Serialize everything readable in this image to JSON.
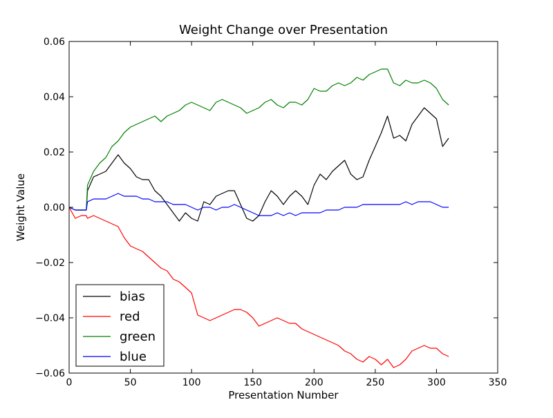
{
  "chart_data": {
    "type": "line",
    "title": "Weight Change over Presentation",
    "xlabel": "Presentation Number",
    "ylabel": "Weight Value",
    "xlim": [
      0,
      350
    ],
    "ylim": [
      -0.06,
      0.06
    ],
    "xticks": [
      0,
      50,
      100,
      150,
      200,
      250,
      300,
      350
    ],
    "xtick_labels": [
      "0",
      "50",
      "100",
      "150",
      "200",
      "250",
      "300",
      "350"
    ],
    "yticks": [
      0.06,
      0.04,
      0.02,
      0.0,
      -0.02,
      -0.04,
      -0.06
    ],
    "ytick_labels": [
      "0.06",
      "0.04",
      "0.02",
      "0.00",
      "−0.02",
      "−0.04",
      "−0.06"
    ],
    "grid": false,
    "legend_position": "lower-left",
    "x": [
      0,
      5,
      10,
      14,
      15,
      20,
      25,
      30,
      35,
      40,
      45,
      50,
      55,
      60,
      65,
      70,
      75,
      80,
      85,
      90,
      95,
      100,
      105,
      110,
      115,
      120,
      125,
      130,
      135,
      140,
      145,
      150,
      155,
      160,
      165,
      170,
      175,
      180,
      185,
      190,
      195,
      200,
      205,
      210,
      215,
      220,
      225,
      230,
      235,
      240,
      245,
      250,
      255,
      260,
      265,
      270,
      275,
      280,
      285,
      290,
      295,
      300,
      305,
      310
    ],
    "series": [
      {
        "name": "bias",
        "color": "#000000",
        "values": [
          0,
          -0.001,
          -0.001,
          -0.001,
          0.006,
          0.011,
          0.012,
          0.013,
          0.016,
          0.019,
          0.016,
          0.014,
          0.011,
          0.01,
          0.01,
          0.006,
          0.004,
          0.001,
          -0.002,
          -0.005,
          -0.002,
          -0.004,
          -0.005,
          0.002,
          0.001,
          0.004,
          0.005,
          0.006,
          0.006,
          0.001,
          -0.004,
          -0.005,
          -0.003,
          0.002,
          0.006,
          0.004,
          0.001,
          0.004,
          0.006,
          0.004,
          0.001,
          0.008,
          0.012,
          0.01,
          0.013,
          0.015,
          0.017,
          0.012,
          0.01,
          0.011,
          0.017,
          0.022,
          0.027,
          0.033,
          0.025,
          0.026,
          0.024,
          0.03,
          0.033,
          0.036,
          0.034,
          0.032,
          0.022,
          0.025
        ]
      },
      {
        "name": "red",
        "color": "#ff0000",
        "values": [
          0,
          -0.004,
          -0.003,
          -0.003,
          -0.004,
          -0.003,
          -0.004,
          -0.005,
          -0.006,
          -0.007,
          -0.011,
          -0.014,
          -0.015,
          -0.016,
          -0.018,
          -0.02,
          -0.022,
          -0.023,
          -0.026,
          -0.027,
          -0.029,
          -0.031,
          -0.039,
          -0.04,
          -0.041,
          -0.04,
          -0.039,
          -0.038,
          -0.037,
          -0.037,
          -0.038,
          -0.04,
          -0.043,
          -0.042,
          -0.041,
          -0.04,
          -0.041,
          -0.042,
          -0.042,
          -0.044,
          -0.045,
          -0.046,
          -0.047,
          -0.048,
          -0.049,
          -0.05,
          -0.052,
          -0.053,
          -0.055,
          -0.056,
          -0.054,
          -0.055,
          -0.057,
          -0.055,
          -0.058,
          -0.057,
          -0.055,
          -0.052,
          -0.051,
          -0.05,
          -0.051,
          -0.051,
          -0.053,
          -0.054
        ]
      },
      {
        "name": "green",
        "color": "#008000",
        "values": [
          0,
          -0.001,
          -0.001,
          -0.001,
          0.008,
          0.013,
          0.016,
          0.018,
          0.022,
          0.024,
          0.027,
          0.029,
          0.03,
          0.031,
          0.032,
          0.033,
          0.031,
          0.033,
          0.034,
          0.035,
          0.037,
          0.038,
          0.037,
          0.036,
          0.035,
          0.038,
          0.039,
          0.038,
          0.037,
          0.036,
          0.034,
          0.035,
          0.036,
          0.038,
          0.039,
          0.037,
          0.036,
          0.038,
          0.038,
          0.037,
          0.039,
          0.043,
          0.042,
          0.042,
          0.044,
          0.045,
          0.044,
          0.045,
          0.047,
          0.046,
          0.048,
          0.049,
          0.05,
          0.05,
          0.045,
          0.044,
          0.046,
          0.045,
          0.045,
          0.046,
          0.045,
          0.043,
          0.039,
          0.037
        ]
      },
      {
        "name": "blue",
        "color": "#0000ff",
        "values": [
          0,
          -0.001,
          -0.001,
          -0.001,
          0.002,
          0.003,
          0.003,
          0.003,
          0.004,
          0.005,
          0.004,
          0.004,
          0.004,
          0.003,
          0.003,
          0.002,
          0.002,
          0.002,
          0.001,
          0.001,
          0.001,
          0.0,
          -0.001,
          0.0,
          0.0,
          -0.001,
          0.0,
          0.0,
          0.001,
          0.0,
          -0.001,
          -0.002,
          -0.003,
          -0.003,
          -0.003,
          -0.002,
          -0.003,
          -0.002,
          -0.003,
          -0.002,
          -0.002,
          -0.002,
          -0.002,
          -0.001,
          -0.001,
          -0.001,
          0.0,
          0.0,
          0.0,
          0.001,
          0.001,
          0.001,
          0.001,
          0.001,
          0.001,
          0.001,
          0.002,
          0.001,
          0.002,
          0.002,
          0.002,
          0.001,
          0.0,
          0.0
        ]
      }
    ]
  }
}
